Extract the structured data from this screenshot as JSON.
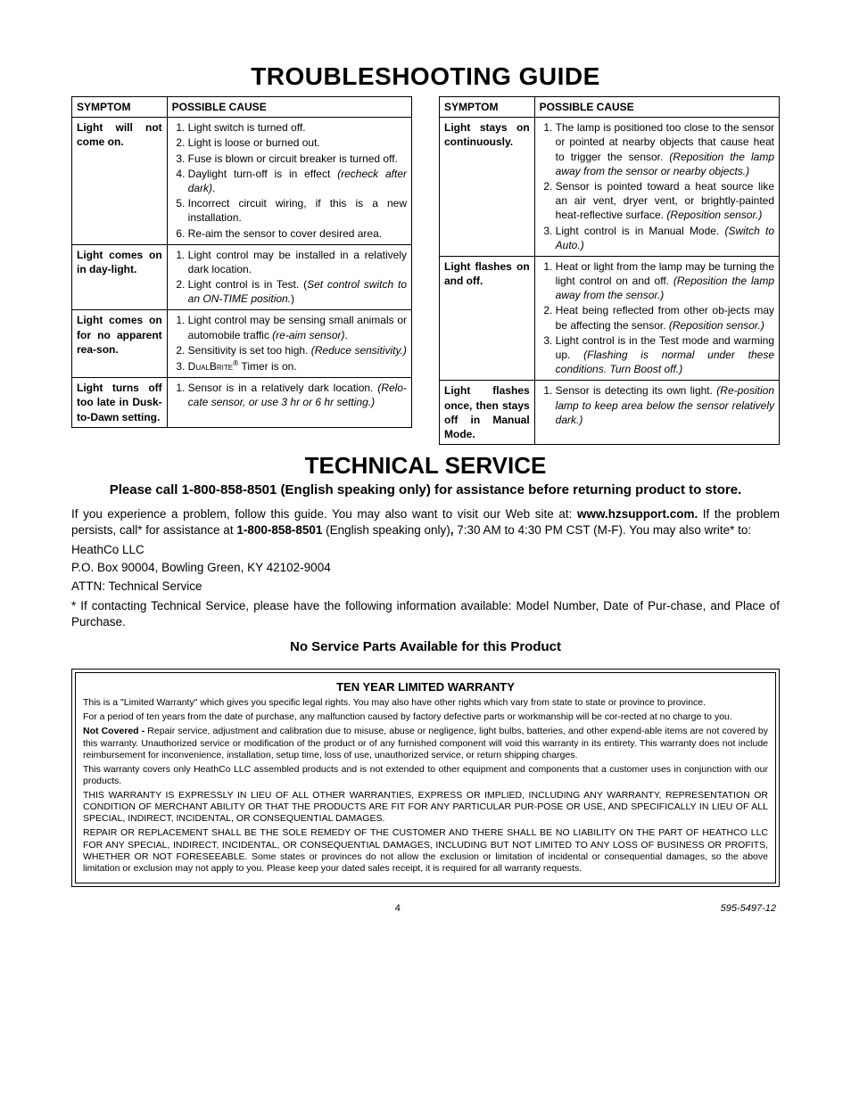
{
  "title_troubleshooting": "TROUBLESHOOTING GUIDE",
  "headers": {
    "symptom": "SYMPTOM",
    "cause": "POSSIBLE CAUSE"
  },
  "left_table": [
    {
      "symptom": "Light will not come on.",
      "causes_html": "<li>Light switch is turned off.</li><li>Light is loose or burned out.</li><li>Fuse is blown or circuit breaker is turned off.</li><li>Daylight turn-off is in effect <span class='ital'>(recheck after dark)</span>.</li><li>Incorrect circuit wiring, if this is a new installation.</li><li>Re-aim the sensor to cover desired area.</li>"
    },
    {
      "symptom": "Light comes on in day-light.",
      "causes_html": "<li>Light control may be installed in a relatively dark location.</li><li>Light control is in Test. (<span class='ital'>Set control switch to an ON-TIME position.</span>)</li>"
    },
    {
      "symptom": "Light comes on for no apparent rea-son.",
      "causes_html": "<li>Light control may be sensing small animals or automobile traffic <span class='ital'>(re-aim sensor)</span>.</li><li>Sensitivity is set too high. <span class='ital'>(Reduce sensitivity.)</span></li><li><span class='sc'>DualBrite</span><sup class='reg'>®</sup> Timer is on.</li>"
    },
    {
      "symptom": "Light turns off too late in Dusk-to-Dawn setting.",
      "causes_html": "<li>Sensor is in a relatively dark location. <span class='ital'>(Relo-cate sensor, or use 3 hr or 6 hr setting.)</span></li>"
    }
  ],
  "right_table": [
    {
      "symptom": "Light stays on continuously.",
      "causes_html": "<li>The lamp is positioned too close to the sensor or pointed at nearby objects that cause heat to trigger the sensor. <span class='ital'>(Reposition the lamp away from the sensor or nearby objects.)</span></li><li>Sensor is pointed toward a heat source like an air vent, dryer vent, or brightly-painted heat-reflective surface. <span class='ital'>(Reposition sensor.)</span></li><li>Light control is in Manual Mode. <span class='ital'>(Switch to Auto.)</span></li>"
    },
    {
      "symptom": "Light flashes on and off.",
      "causes_html": "<li>Heat or light from the lamp may be turning the light control on and off. <span class='ital'>(Reposition the lamp away from the sensor.)</span></li><li>Heat being reflected from other ob-jects may be affecting the sensor. <span class='ital'>(Reposition sensor.)</span></li><li>Light control is in the Test mode and warming up. <span class='ital'>(Flashing is normal under these conditions. Turn Boost off.)</span></li>"
    },
    {
      "symptom": "Light flashes once, then stays off in Manual Mode.",
      "causes_html": "<li>Sensor is detecting its own light. <span class='ital'>(Re-position lamp to keep area below the sensor relatively dark.)</span></li>"
    }
  ],
  "title_technical": "TECHNICAL SERVICE",
  "tech_sub": "Please call 1-800-858-8501 (English speaking only) for assistance before returning product to store.",
  "tech_p1_html": "If you experience a problem, follow this guide. You may also want to visit our Web site at: <b>www.hzsupport.com.</b> If the problem persists, call* for assistance at <b>1-800-858-8501</b> (English speaking only)<b>,</b> 7:30 AM to 4:30 PM CST (M-F). You may also write* to:",
  "addr1": "HeathCo LLC",
  "addr2": "P.O. Box 90004, Bowling Green, KY 42102-9004",
  "addr3": "ATTN: Technical Service",
  "tech_p2": "* If contacting Technical Service, please have the following information available: Model Number, Date of Pur-chase, and Place of Purchase.",
  "no_parts": "No Service Parts Available for this Product",
  "warranty_title": "TEN YEAR LIMITED WARRANTY",
  "warranty_p1": "This is a \"Limited Warranty\" which gives you specific legal rights. You may also have other rights which vary from state to state or province to province.",
  "warranty_p2": "For a period of ten years from the date of purchase, any malfunction caused by factory defective parts or workmanship will be cor-rected at no charge to you.",
  "warranty_p3_html": "<b>Not Covered -</b> Repair service, adjustment and calibration due to misuse, abuse or negligence, light bulbs, batteries, and other expend-able items are not covered by this warranty. Unauthorized service or modification of the product or of any furnished component will void this warranty in its entirety. This warranty does not include reimbursement for inconvenience, installation, setup time, loss of use, unauthorized service, or return shipping charges.",
  "warranty_p4": "This warranty covers only HeathCo LLC assembled products and is not extended to other equipment and components that a customer uses in conjunction with our products.",
  "warranty_p5": "THIS WARRANTY IS EXPRESSLY IN LIEU OF ALL OTHER WARRANTIES, EXPRESS OR IMPLIED, INCLUDING ANY WARRANTY, REPRESENTATION OR CONDITION OF MERCHANT ABILITY OR THAT THE PRODUCTS ARE FIT FOR ANY PARTICULAR PUR-POSE OR USE, AND SPECIFICALLY IN LIEU OF ALL SPECIAL, INDIRECT, INCIDENTAL, OR CONSEQUENTIAL DAMAGES.",
  "warranty_p6": "REPAIR OR REPLACEMENT SHALL BE THE SOLE REMEDY OF THE CUSTOMER AND THERE SHALL BE NO LIABILITY ON THE PART OF HEATHCO LLC FOR ANY SPECIAL, INDIRECT, INCIDENTAL, OR CONSEQUENTIAL DAMAGES, INCLUDING BUT NOT LIMITED TO ANY LOSS OF BUSINESS OR PROFITS, WHETHER OR NOT FORESEEABLE. Some states or provinces do not allow the exclusion or limitation of incidental or consequential damages, so the above limitation or exclusion may not apply to you. Please keep your dated sales receipt, it is required for all warranty requests.",
  "page_number": "4",
  "doc_code": "595-5497-12"
}
